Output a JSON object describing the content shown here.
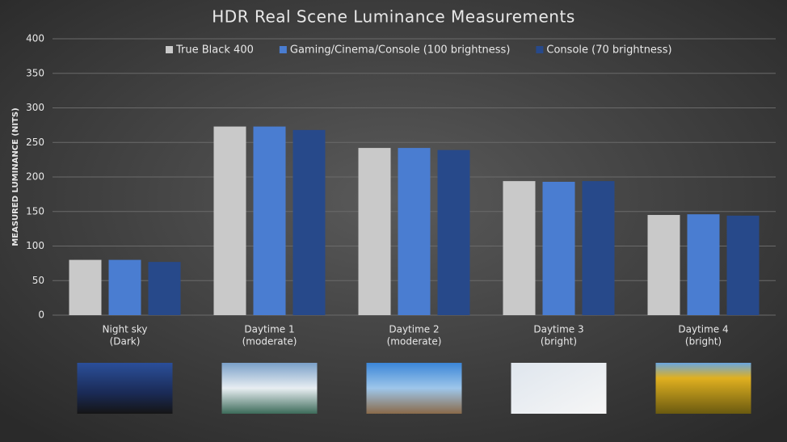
{
  "chart_data": {
    "type": "bar",
    "title": "HDR Real Scene Luminance Measurements",
    "y_label": "MEASURED LUMINANCE (NITS)",
    "categories": [
      [
        "Night sky",
        "(Dark)"
      ],
      [
        "Daytime 1",
        "(moderate)"
      ],
      [
        "Daytime 2",
        "(moderate)"
      ],
      [
        "Daytime 3",
        "(bright)"
      ],
      [
        "Daytime 4",
        "(bright)"
      ]
    ],
    "series": [
      {
        "name": "True Black 400",
        "color": "#c9c9c9",
        "values": [
          80,
          273,
          242,
          194,
          145
        ]
      },
      {
        "name": "Gaming/Cinema/Console (100 brightness)",
        "color": "#4a7dd1",
        "values": [
          80,
          273,
          242,
          193,
          146
        ]
      },
      {
        "name": "Console (70 brightness)",
        "color": "#27498a",
        "values": [
          77,
          268,
          239,
          194,
          144
        ]
      }
    ],
    "ylim": [
      0,
      400
    ],
    "yticks": [
      0,
      50,
      100,
      150,
      200,
      250,
      300,
      350,
      400
    ],
    "grid": true,
    "legend": "top"
  }
}
